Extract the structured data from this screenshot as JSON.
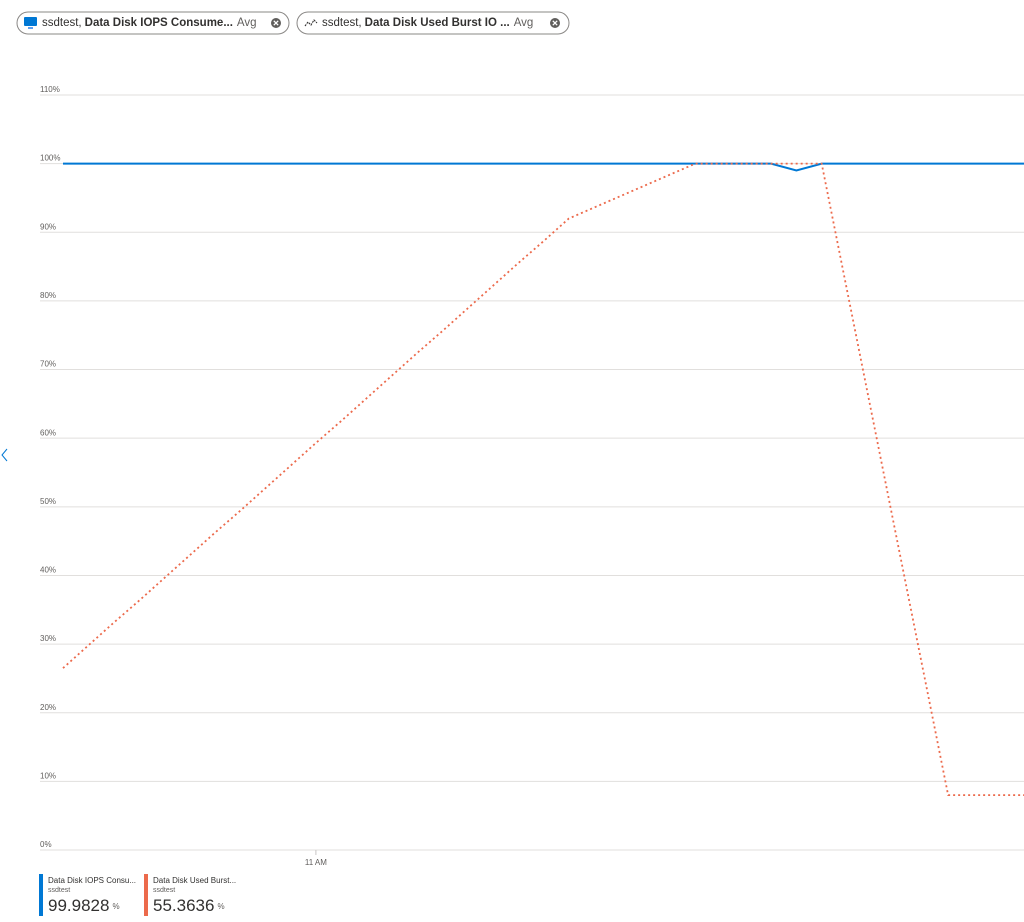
{
  "filters": [
    {
      "resource": "ssdtest,",
      "metric": "Data Disk IOPS Consume...",
      "aggregation": "Avg"
    },
    {
      "resource": "ssdtest,",
      "metric": "Data Disk Used Burst IO ...",
      "aggregation": "Avg"
    }
  ],
  "chart_data": {
    "type": "line",
    "categories": [
      null,
      null,
      null,
      null,
      null,
      null,
      null,
      null,
      null,
      null,
      "11 AM",
      null,
      null,
      null,
      null,
      null,
      null,
      null,
      null,
      null,
      null,
      null,
      null,
      null,
      null,
      null,
      null,
      null,
      null,
      null,
      null,
      null,
      null,
      null,
      null,
      null,
      null,
      null,
      null
    ],
    "ylim": [
      0,
      110
    ],
    "yticks": [
      {
        "value": 0,
        "label": "0%"
      },
      {
        "value": 10,
        "label": "10%"
      },
      {
        "value": 20,
        "label": "20%"
      },
      {
        "value": 30,
        "label": "30%"
      },
      {
        "value": 40,
        "label": "40%"
      },
      {
        "value": 50,
        "label": "50%"
      },
      {
        "value": 60,
        "label": "60%"
      },
      {
        "value": 70,
        "label": "70%"
      },
      {
        "value": 80,
        "label": "80%"
      },
      {
        "value": 90,
        "label": "90%"
      },
      {
        "value": 100,
        "label": "100%"
      },
      {
        "value": 110,
        "label": "110%"
      }
    ],
    "grid": true,
    "series": [
      {
        "name": "Data Disk IOPS Consu...",
        "resource": "ssdtest",
        "summary": 99.9828,
        "summary_unit": "%",
        "color": "#0078d4",
        "style": "solid",
        "values": [
          100,
          100,
          100,
          100,
          100,
          100,
          100,
          100,
          100,
          100,
          100,
          100,
          100,
          100,
          100,
          100,
          100,
          100,
          100,
          100,
          100,
          100,
          100,
          100,
          100,
          100,
          100,
          100,
          100,
          99,
          100,
          100,
          100,
          100,
          100,
          100,
          100,
          100,
          100
        ]
      },
      {
        "name": "Data Disk Used Burst...",
        "resource": "ssdtest",
        "summary": 55.3636,
        "summary_unit": "%",
        "color": "#ec6a4c",
        "style": "dotted",
        "values": [
          26.5,
          29.8,
          33.1,
          36.3,
          39.6,
          42.9,
          46.2,
          49.4,
          52.7,
          56.0,
          59.3,
          62.5,
          65.8,
          69.1,
          72.4,
          75.6,
          78.9,
          82.2,
          85.5,
          88.7,
          92.0,
          93.6,
          95.2,
          96.8,
          98.4,
          100,
          100,
          100,
          100,
          100,
          100,
          81.6,
          63.2,
          44.8,
          26.4,
          8,
          8,
          8,
          8
        ]
      }
    ]
  }
}
